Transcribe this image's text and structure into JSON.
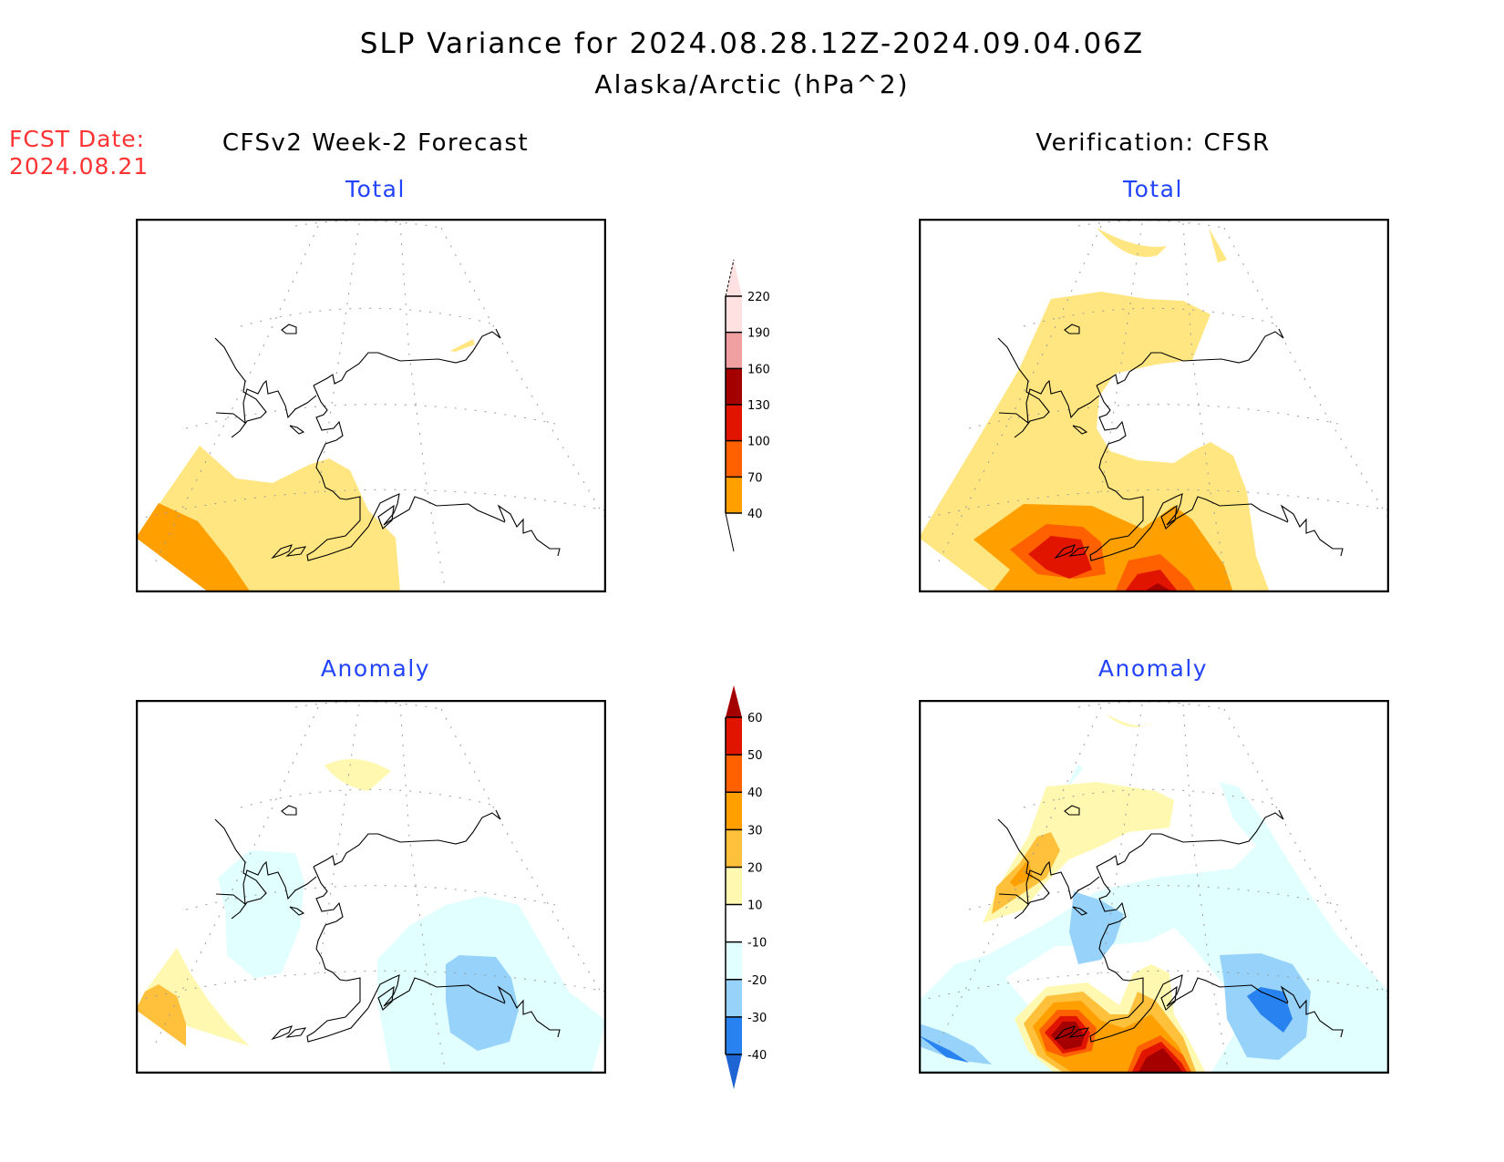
{
  "header": {
    "title": "SLP Variance for 2024.08.28.12Z-2024.09.04.06Z",
    "subtitle": "Alaska/Arctic (hPa^2)"
  },
  "forecast_date": {
    "label": "FCST Date:",
    "value": "2024.08.21"
  },
  "columns": {
    "left": "CFSv2 Week-2 Forecast",
    "right": "Verification: CFSR"
  },
  "panel_titles": {
    "top_left": "Total",
    "top_right": "Total",
    "bottom_left": "Anomaly",
    "bottom_right": "Anomaly"
  },
  "colors": {
    "title_text": "#000000",
    "fcst_text": "#ff3333",
    "panel_title_text": "#2244ff",
    "coastline": "#000000",
    "gridline": "#999999"
  },
  "chart_data": [
    {
      "type": "heatmap",
      "title": "Total",
      "source": "CFSv2 Week-2 Forecast",
      "units": "hPa^2",
      "region": "Alaska/Arctic",
      "colorbar": "total",
      "features": [
        {
          "region": "Western Bering Sea / Aleutians west",
          "level": "40-70"
        },
        {
          "region": "Far western Aleutians corner",
          "level": "70-100"
        },
        {
          "region": "Beaufort coast small sliver",
          "level": "40-70"
        }
      ]
    },
    {
      "type": "heatmap",
      "title": "Total",
      "source": "Verification: CFSR",
      "units": "hPa^2",
      "region": "Alaska/Arctic",
      "colorbar": "total",
      "features": [
        {
          "region": "Bering Sea / Chukchi / western Alaska",
          "level": "40-70"
        },
        {
          "region": "Aleutians / Alaska Peninsula",
          "level": "70-100"
        },
        {
          "region": "Alaska Peninsula core",
          "level": "130-160"
        },
        {
          "region": "North Pacific south of Kodiak",
          "level": "160-190"
        },
        {
          "region": "High Arctic near pole",
          "level": "40-70"
        }
      ]
    },
    {
      "type": "heatmap",
      "title": "Anomaly",
      "source": "CFSv2 Week-2 Forecast",
      "units": "hPa^2",
      "region": "Alaska/Arctic",
      "colorbar": "anomaly",
      "features": [
        {
          "region": "Arctic Ocean north of Alaska",
          "level": "10-20"
        },
        {
          "region": "Chukotka / Bering Strait",
          "level": "-20 to -10"
        },
        {
          "region": "Gulf of Alaska",
          "level": "-20 to -10"
        },
        {
          "region": "Gulf of Alaska core",
          "level": "-30 to -20"
        },
        {
          "region": "Far western Aleutians",
          "level": "10-30"
        }
      ]
    },
    {
      "type": "heatmap",
      "title": "Anomaly",
      "source": "Verification: CFSR",
      "units": "hPa^2",
      "region": "Alaska/Arctic",
      "colorbar": "anomaly",
      "features": [
        {
          "region": "Chukotka coast",
          "level": "10-40"
        },
        {
          "region": "Northern Alaska / Beaufort",
          "level": "10-20"
        },
        {
          "region": "Interior Alaska / Bering",
          "level": "-20 to -10"
        },
        {
          "region": "Norton Sound",
          "level": "-30 to -20"
        },
        {
          "region": "Alaska Peninsula",
          "level": ">60"
        },
        {
          "region": "North Pacific south of Kodiak",
          "level": ">60"
        },
        {
          "region": "Gulf of Alaska / SE Alaska",
          "level": "-40 to -20"
        },
        {
          "region": "Western Aleutians",
          "level": "-40 to -20"
        }
      ]
    }
  ],
  "colorbars": {
    "total": {
      "labels": [
        "220",
        "190",
        "160",
        "130",
        "100",
        "70",
        "40"
      ],
      "levels": [
        40,
        70,
        100,
        130,
        160,
        190,
        220
      ],
      "colors": [
        "#ffe680",
        "#ffa000",
        "#ff6000",
        "#e11400",
        "#a50000",
        "#f0a0a0",
        "#ffe1e1"
      ],
      "extend": "both"
    },
    "anomaly": {
      "labels": [
        "60",
        "50",
        "40",
        "30",
        "20",
        "10",
        "-10",
        "-20",
        "-30",
        "-40"
      ],
      "levels": [
        -40,
        -30,
        -20,
        -10,
        10,
        20,
        30,
        40,
        50,
        60
      ],
      "colors": [
        "#1e64d2",
        "#2882f0",
        "#96d2fa",
        "#e1ffff",
        "#ffffff",
        "#fff8b0",
        "#ffc03c",
        "#ffa000",
        "#ff6000",
        "#e11400",
        "#a50000"
      ],
      "extend": "both"
    }
  }
}
